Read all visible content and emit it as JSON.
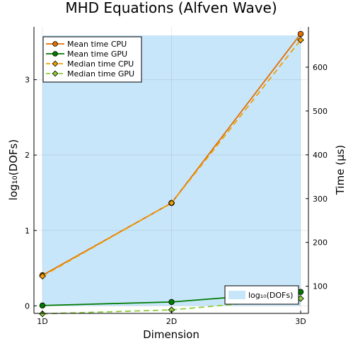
{
  "chart_data": {
    "type": "line",
    "title": "MHD Equations (Alfven Wave)",
    "xlabel": "Dimension",
    "ylabel_left": "log₁₀(DOFs)",
    "ylabel_right": "Time (µs)",
    "categories": [
      "1D",
      "2D",
      "3D"
    ],
    "left_axis": {
      "ylim": [
        -0.1,
        3.7
      ],
      "ticks": [
        0,
        1,
        2,
        3
      ],
      "series": [
        {
          "name": "log₁₀(DOFs)",
          "values": [
            0.43,
            1.39,
            3.6
          ],
          "color": "#c8e6fa",
          "style": "filled-area"
        }
      ]
    },
    "right_axis": {
      "ylim": [
        38,
        692
      ],
      "ticks": [
        100,
        200,
        300,
        400,
        500,
        600
      ],
      "series": [
        {
          "name": "Mean time CPU",
          "values": [
            125,
            290,
            676
          ],
          "color": "#e26f00",
          "style": "solid",
          "marker": "circle"
        },
        {
          "name": "Mean time GPU",
          "values": [
            56,
            64,
            87
          ],
          "color": "#007a00",
          "style": "solid",
          "marker": "circle"
        },
        {
          "name": "Median time CPU",
          "values": [
            123,
            290,
            662
          ],
          "color": "#f0a000",
          "style": "dashed",
          "marker": "diamond"
        },
        {
          "name": "Median time GPU",
          "values": [
            37,
            46,
            72
          ],
          "color": "#8cce3c",
          "style": "dashed",
          "marker": "diamond"
        }
      ]
    },
    "legend_left_position": "bottom-right",
    "legend_right_position": "top-left",
    "grid": true
  }
}
